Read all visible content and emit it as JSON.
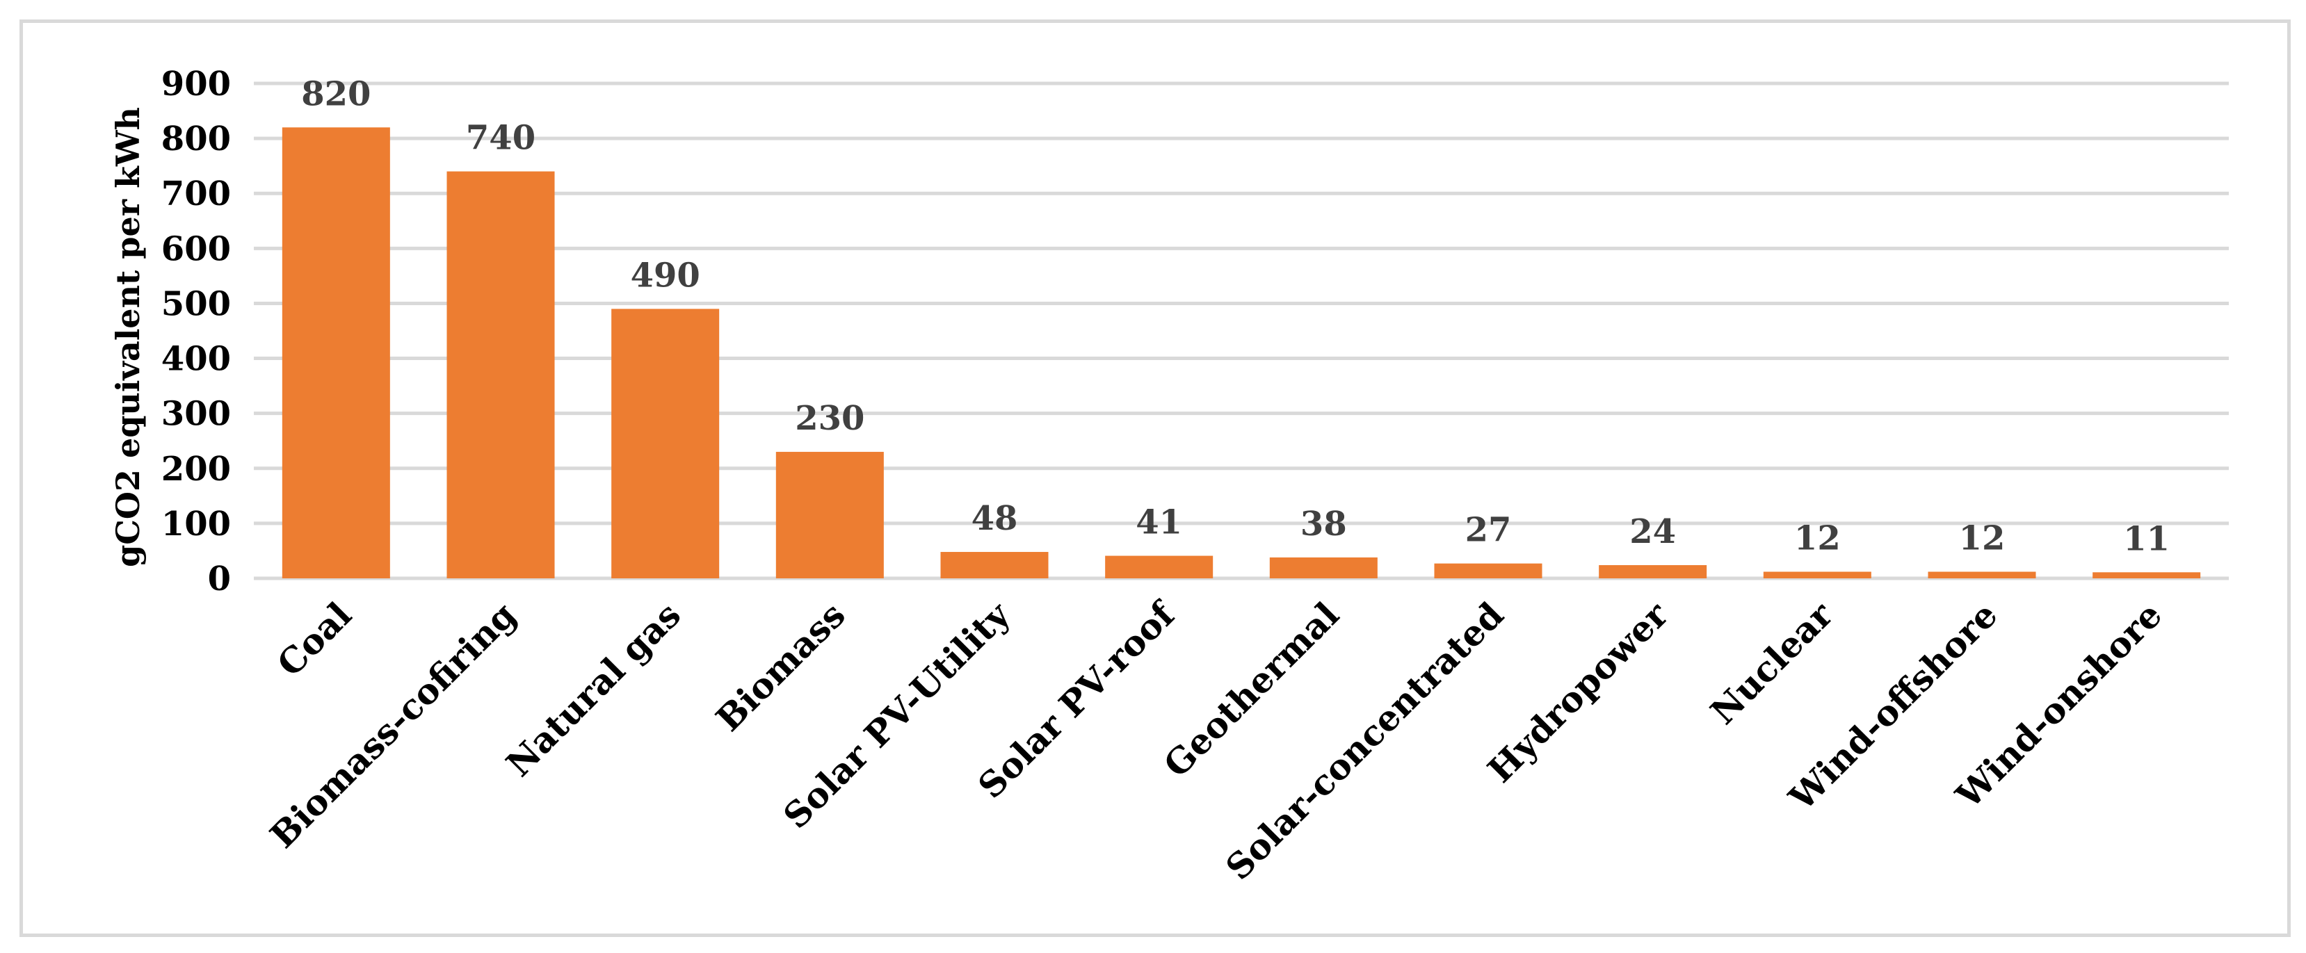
{
  "chart_data": {
    "type": "bar",
    "title": "",
    "xlabel": "",
    "ylabel": "gCO2 equivalent per kWh",
    "ylim": [
      0,
      900
    ],
    "yticks": [
      0,
      100,
      200,
      300,
      400,
      500,
      600,
      700,
      800,
      900
    ],
    "grid": true,
    "legend": "none",
    "bar_color": "#ed7d31",
    "categories": [
      "Coal",
      "Biomass-cofiring",
      "Natural gas",
      "Biomass",
      "Solar PV-Utility",
      "Solar PV-roof",
      "Geothermal",
      "Solar-concentrated",
      "Hydropower",
      "Nuclear",
      "Wind-offshore",
      "Wind-onshore"
    ],
    "values": [
      820,
      740,
      490,
      230,
      48,
      41,
      38,
      27,
      24,
      12,
      12,
      11
    ]
  }
}
